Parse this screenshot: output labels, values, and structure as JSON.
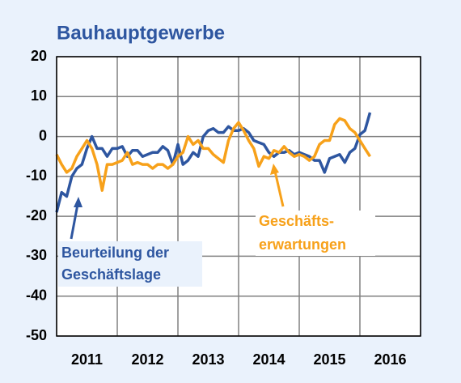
{
  "chart_data": {
    "type": "line",
    "title": "Bauhauptgewerbe",
    "x": [
      2011,
      2011.083,
      2011.167,
      2011.25,
      2011.333,
      2011.417,
      2011.5,
      2011.583,
      2011.667,
      2011.75,
      2011.833,
      2011.917,
      2012,
      2012.083,
      2012.167,
      2012.25,
      2012.333,
      2012.417,
      2012.5,
      2012.583,
      2012.667,
      2012.75,
      2012.833,
      2012.917,
      2013,
      2013.083,
      2013.167,
      2013.25,
      2013.333,
      2013.417,
      2013.5,
      2013.583,
      2013.667,
      2013.75,
      2013.833,
      2013.917,
      2014,
      2014.083,
      2014.167,
      2014.25,
      2014.333,
      2014.417,
      2014.5,
      2014.583,
      2014.667,
      2014.75,
      2014.833,
      2014.917,
      2015,
      2015.083,
      2015.167,
      2015.25,
      2015.333,
      2015.417,
      2015.5,
      2015.583,
      2015.667,
      2015.75,
      2015.833,
      2015.917,
      2016,
      2016.083,
      2016.167
    ],
    "series": [
      {
        "name": "Beurteilung der Geschäftslage",
        "color": "#2e56a0",
        "values": [
          -19,
          -14,
          -15,
          -10,
          -8,
          -7,
          -3,
          0,
          -3,
          -3,
          -5,
          -3,
          -3,
          -2.5,
          -5,
          -3.5,
          -3.5,
          -5,
          -4.5,
          -4,
          -4,
          -2.5,
          -3.5,
          -7,
          -2,
          -7,
          -6,
          -4,
          -5,
          0,
          1.5,
          2,
          1,
          1,
          2.5,
          1.5,
          1.5,
          2,
          1,
          -1,
          -1.5,
          -2,
          -4,
          -5,
          -4,
          -4,
          -3.5,
          -4.5,
          -4,
          -4.5,
          -5,
          -6,
          -6,
          -9,
          -5.5,
          -5,
          -4.5,
          -6.5,
          -4,
          -3,
          0.5,
          1.5,
          6
        ]
      },
      {
        "name": "Geschäftserwartungen",
        "color": "#f7a11a",
        "values": [
          -4.5,
          -7,
          -9,
          -8,
          -5,
          -3,
          -1,
          -3,
          -7,
          -13.5,
          -7,
          -7,
          -6.5,
          -6,
          -4,
          -7,
          -6.5,
          -7,
          -7,
          -8,
          -7,
          -7,
          -8,
          -7,
          -5,
          -4,
          0,
          -2,
          -1,
          -3,
          -3,
          -4.5,
          -5.5,
          -6.5,
          -1,
          2,
          3.5,
          1.5,
          -1,
          -3,
          -7.5,
          -5,
          -5.5,
          -3.5,
          -4,
          -2.5,
          -4,
          -5,
          -4.5,
          -5,
          -6,
          -5,
          -2,
          -1,
          -1,
          3,
          4.5,
          4,
          2,
          1,
          -1,
          -3,
          -5
        ]
      }
    ],
    "annotations": [
      [
        "Beurteilung der",
        "Geschäftslage"
      ],
      [
        "Geschäfts-",
        "erwartungen"
      ]
    ],
    "xlim": [
      2011,
      2017
    ],
    "xticks": [
      2011,
      2012,
      2013,
      2014,
      2015,
      2016,
      2017
    ],
    "year_labels": [
      "2011",
      "2012",
      "2013",
      "2014",
      "2015",
      "2016"
    ],
    "ylim": [
      -50,
      20
    ],
    "yticks": [
      -50,
      -40,
      -30,
      -20,
      -10,
      0,
      10,
      20
    ],
    "grid": true
  }
}
